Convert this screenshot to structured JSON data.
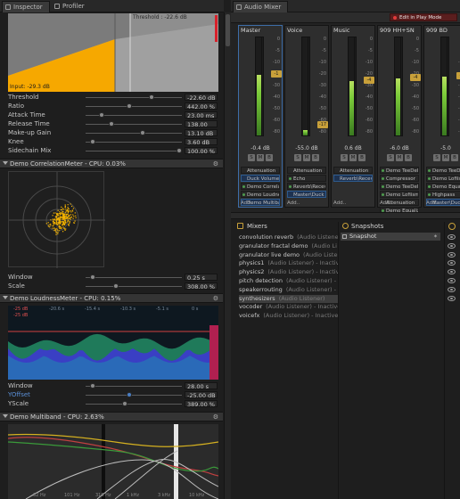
{
  "left_tabs": [
    {
      "label": "Inspector"
    },
    {
      "label": "Profiler"
    }
  ],
  "compressor": {
    "threshold_label": "Threshold : -22.6 dB",
    "input_label": "Input: -29.3 dB",
    "params": [
      {
        "label": "Threshold",
        "value": "-22.60 dB",
        "knob": 0.7
      },
      {
        "label": "Ratio",
        "value": "442.00 %",
        "knob": 0.45
      },
      {
        "label": "Attack Time",
        "value": "23.00 ms",
        "knob": 0.15
      },
      {
        "label": "Release Time",
        "value": "138.00 ms",
        "knob": 0.25
      },
      {
        "label": "Make-up Gain",
        "value": "13.10 dB",
        "knob": 0.6
      },
      {
        "label": "Knee",
        "value": "3.60 dB",
        "knob": 0.05
      },
      {
        "label": "Sidechain Mix",
        "value": "100.00 %",
        "knob": 1.0
      }
    ]
  },
  "correlation": {
    "header": "Demo CorrelationMeter - CPU: 0.03%",
    "params": [
      {
        "label": "Window",
        "value": "0.25 s",
        "knob": 0.05
      },
      {
        "label": "Scale",
        "value": "308.00 %",
        "knob": 0.3
      }
    ]
  },
  "loudness": {
    "header": "Demo LoudnessMeter - CPU: 0.15%",
    "scale_labels": [
      "-25 dB",
      "-20.6 s",
      "-15.4 s",
      "-10.3 s",
      "-5.1 s",
      "0 s"
    ],
    "params": [
      {
        "label": "Window",
        "value": "28.00 s",
        "knob": 0.05,
        "highlight": false
      },
      {
        "label": "YOffset",
        "value": "-25.00 dB",
        "knob": 0.45,
        "highlight": true
      },
      {
        "label": "YScale",
        "value": "389.00 %",
        "knob": 0.4,
        "highlight": false
      }
    ]
  },
  "multiband": {
    "header": "Demo Multiband - CPU: 2.63%",
    "freq_labels": [
      "32 Hz",
      "101 Hz",
      "316 Hz",
      "1 kHz",
      "3 kHz",
      "10 kHz"
    ]
  },
  "mixer": {
    "tab_label": "Audio Mixer",
    "play_mode_label": "Edit in Play Mode",
    "scale_labels": [
      "0",
      "-5",
      "-10",
      "-20",
      "-30",
      "-40",
      "-50",
      "-60",
      "-80"
    ],
    "strips": [
      {
        "name": "Master",
        "db": "-0.4 dB",
        "level": 0.62,
        "fader": "-1",
        "selected": true,
        "effects": [
          {
            "label": "Attenuation",
            "kind": "plain"
          },
          {
            "label": "Duck Volume",
            "kind": "blue"
          },
          {
            "label": "Demo Correla",
            "kind": "dot"
          },
          {
            "label": "Demo Loudnes",
            "kind": "dot"
          },
          {
            "label": "Demo Multiba",
            "kind": "blue"
          }
        ]
      },
      {
        "name": "Voice",
        "db": "-55.0 dB",
        "level": 0.05,
        "fader": "-17",
        "selected": false,
        "effects": [
          {
            "label": "Attenuation",
            "kind": "plain"
          },
          {
            "label": "Echo",
            "kind": "dot"
          },
          {
            "label": "Reverb\\Recev",
            "kind": "dot"
          },
          {
            "label": "Master\\Duck \\",
            "kind": "blue"
          }
        ]
      },
      {
        "name": "Music",
        "db": "0.6 dB",
        "level": 0.55,
        "fader": "-4",
        "selected": false,
        "effects": [
          {
            "label": "Attenuation",
            "kind": "plain"
          },
          {
            "label": "Reverb\\Recev",
            "kind": "blue"
          }
        ]
      },
      {
        "name": "909 HH+SN",
        "db": "-6.0 dB",
        "level": 0.58,
        "fader": "-4",
        "selected": false,
        "effects": [
          {
            "label": "Demo TeeDel",
            "kind": "dot"
          },
          {
            "label": "Compressor",
            "kind": "dot"
          },
          {
            "label": "Demo TeeDel",
            "kind": "dot"
          },
          {
            "label": "Demo Lofiism",
            "kind": "dot"
          },
          {
            "label": "Attenuation",
            "kind": "plain"
          },
          {
            "label": "Demo Equaliz",
            "kind": "dot"
          }
        ]
      },
      {
        "name": "909 BD",
        "db": "-5.0",
        "level": 0.6,
        "fader": "-1",
        "selected": false,
        "effects": [
          {
            "label": "Demo TeeDel",
            "kind": "dot"
          },
          {
            "label": "Demo Lofiism",
            "kind": "dot"
          },
          {
            "label": "Demo Equaliz",
            "kind": "dot"
          },
          {
            "label": "Highpass",
            "kind": "dot"
          },
          {
            "label": "Master\\Duck",
            "kind": "blue"
          }
        ]
      }
    ],
    "add_label": "Add.."
  },
  "mixers_panel": {
    "title": "Mixers",
    "items": [
      {
        "name": "convolution reverb",
        "sub": "(Audio Listener)",
        "selected": false
      },
      {
        "name": "granulator fractal demo",
        "sub": "(Audio Li",
        "selected": false
      },
      {
        "name": "granulator live demo",
        "sub": "(Audio Lister",
        "selected": false
      },
      {
        "name": "physics1",
        "sub": "(Audio Listener) - Inactiv",
        "selected": false
      },
      {
        "name": "physics2",
        "sub": "(Audio Listener) - Inactiv",
        "selected": false
      },
      {
        "name": "pitch detection",
        "sub": "(Audio Listener) - I",
        "selected": false
      },
      {
        "name": "speakerrouting",
        "sub": "(Audio Listener) - Ina",
        "selected": false
      },
      {
        "name": "synthesizers",
        "sub": "(Audio Listener)",
        "selected": true
      },
      {
        "name": "vocoder",
        "sub": "(Audio Listener) - Inactive",
        "selected": false
      },
      {
        "name": "voicefx",
        "sub": "(Audio Listener) - Inactive",
        "selected": false
      }
    ]
  },
  "snapshots_panel": {
    "title": "Snapshots",
    "items": [
      {
        "name": "Snapshot"
      }
    ]
  },
  "groups_panel_icon": "group-icon",
  "colors": {
    "accent": "#f6a800",
    "meter_green": "#6fc036",
    "selection": "#3d6da8"
  }
}
